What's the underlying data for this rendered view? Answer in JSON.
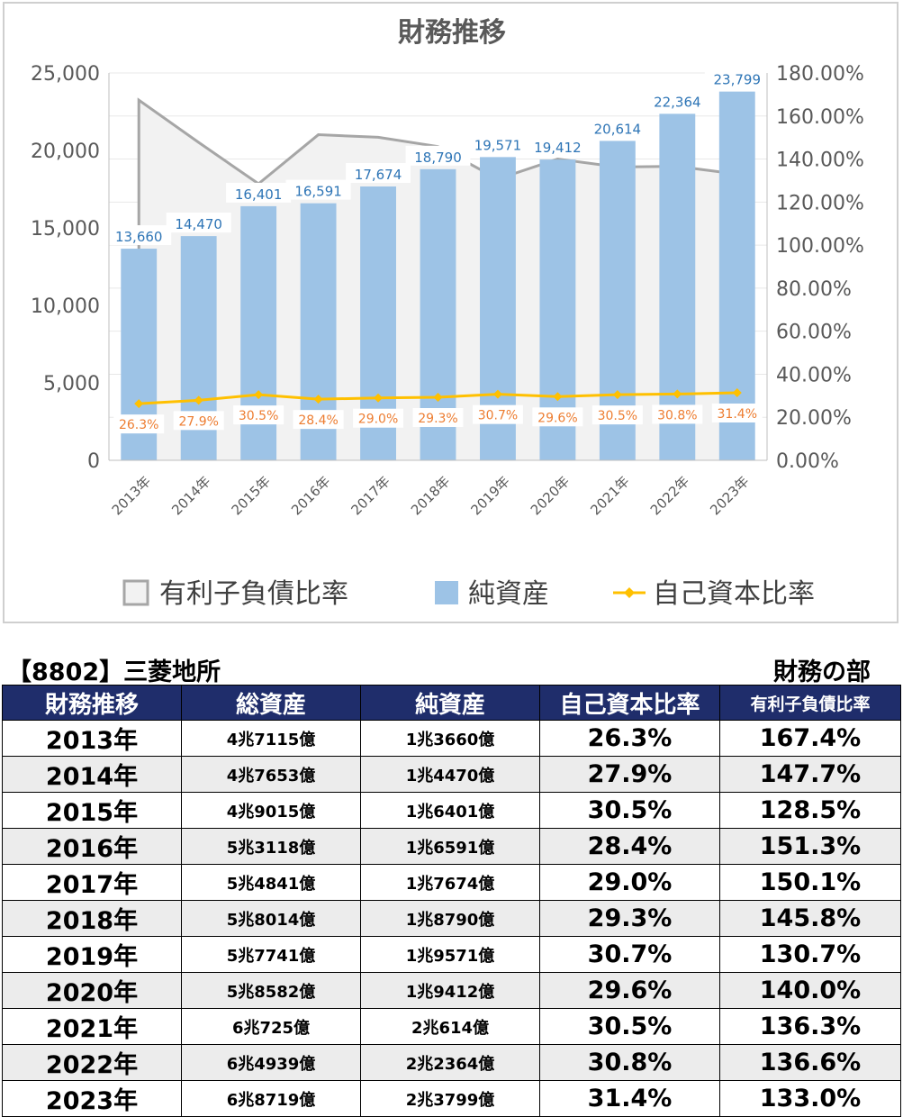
{
  "chart_data": {
    "type": "bar+line+area",
    "title": "財務推移",
    "categories": [
      "2013年",
      "2014年",
      "2015年",
      "2016年",
      "2017年",
      "2018年",
      "2019年",
      "2020年",
      "2021年",
      "2022年",
      "2023年"
    ],
    "series": [
      {
        "name": "有利子負債比率",
        "type": "area",
        "axis": "right",
        "values": [
          167.4,
          147.7,
          128.5,
          151.3,
          150.1,
          145.8,
          130.7,
          140.0,
          136.3,
          136.6,
          133.0
        ]
      },
      {
        "name": "純資産",
        "type": "bar",
        "axis": "left",
        "values": [
          13660,
          14470,
          16401,
          16591,
          17674,
          18790,
          19571,
          19412,
          20614,
          22364,
          23799
        ],
        "labels": [
          "13,660",
          "14,470",
          "16,401",
          "16,591",
          "17,674",
          "18,790",
          "19,571",
          "19,412",
          "20,614",
          "22,364",
          "23,799"
        ]
      },
      {
        "name": "自己資本比率",
        "type": "line",
        "axis": "right",
        "values": [
          26.3,
          27.9,
          30.5,
          28.4,
          29.0,
          29.3,
          30.7,
          29.6,
          30.5,
          30.8,
          31.4
        ],
        "labels": [
          "26.3%",
          "27.9%",
          "30.5%",
          "28.4%",
          "29.0%",
          "29.3%",
          "30.7%",
          "29.6%",
          "30.5%",
          "30.8%",
          "31.4%"
        ]
      }
    ],
    "y_left": {
      "range": [
        0,
        25000
      ],
      "ticks": [
        "0",
        "5,000",
        "10,000",
        "15,000",
        "20,000",
        "25,000"
      ]
    },
    "y_right": {
      "range": [
        0,
        180
      ],
      "ticks": [
        "0.00%",
        "20.00%",
        "40.00%",
        "60.00%",
        "80.00%",
        "100.00%",
        "120.00%",
        "140.00%",
        "160.00%",
        "180.00%"
      ]
    },
    "legend_position": "bottom",
    "colors": {
      "bar": "#9dc3e6",
      "line": "#ffc000",
      "line_label": "#ed7d31",
      "area_fill": "#f2f2f2",
      "area_stroke": "#a6a6a6",
      "bar_label": "#2e75b6"
    }
  },
  "table": {
    "company": "【8802】三菱地所",
    "section": "財務の部",
    "headers": [
      "財務推移",
      "総資産",
      "純資産",
      "自己資本比率",
      "有利子負債比率"
    ],
    "header_colors": {
      "bg": "#1f2d6b",
      "text": "#ffffff"
    },
    "rows": [
      [
        "2013年",
        "4兆7115億",
        "1兆3660億",
        "26.3%",
        "167.4%"
      ],
      [
        "2014年",
        "4兆7653億",
        "1兆4470億",
        "27.9%",
        "147.7%"
      ],
      [
        "2015年",
        "4兆9015億",
        "1兆6401億",
        "30.5%",
        "128.5%"
      ],
      [
        "2016年",
        "5兆3118億",
        "1兆6591億",
        "28.4%",
        "151.3%"
      ],
      [
        "2017年",
        "5兆4841億",
        "1兆7674億",
        "29.0%",
        "150.1%"
      ],
      [
        "2018年",
        "5兆8014億",
        "1兆8790億",
        "29.3%",
        "145.8%"
      ],
      [
        "2019年",
        "5兆7741億",
        "1兆9571億",
        "30.7%",
        "130.7%"
      ],
      [
        "2020年",
        "5兆8582億",
        "1兆9412億",
        "29.6%",
        "140.0%"
      ],
      [
        "2021年",
        "6兆725億",
        "2兆614億",
        "30.5%",
        "136.3%"
      ],
      [
        "2022年",
        "6兆4939億",
        "2兆2364億",
        "30.8%",
        "136.6%"
      ],
      [
        "2023年",
        "6兆8719億",
        "2兆3799億",
        "31.4%",
        "133.0%"
      ]
    ]
  }
}
